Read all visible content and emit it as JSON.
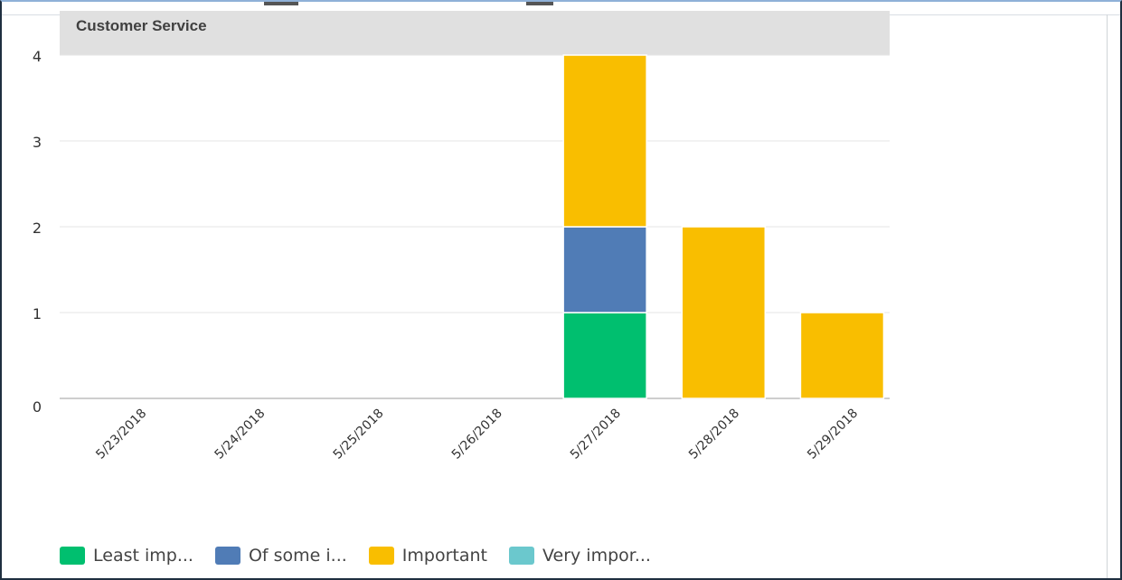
{
  "chart_data": {
    "type": "bar",
    "stacked": true,
    "title": "Customer Service",
    "categories": [
      "5/23/2018",
      "5/24/2018",
      "5/25/2018",
      "5/26/2018",
      "5/27/2018",
      "5/28/2018",
      "5/29/2018"
    ],
    "series": [
      {
        "name": "Least imp...",
        "color": "#00bf6f",
        "values": [
          0,
          0,
          0,
          0,
          1,
          0,
          0
        ]
      },
      {
        "name": "Of some i...",
        "color": "#507cb6",
        "values": [
          0,
          0,
          0,
          0,
          1,
          0,
          0
        ]
      },
      {
        "name": "Important",
        "color": "#f9be00",
        "values": [
          0,
          0,
          0,
          0,
          2,
          2,
          1
        ]
      },
      {
        "name": "Very impor...",
        "color": "#6bc8cd",
        "values": [
          0,
          0,
          0,
          0,
          0,
          0,
          0
        ]
      }
    ],
    "ylim": [
      0,
      4
    ],
    "yticks": [
      0,
      1,
      2,
      3,
      4
    ],
    "grid": true,
    "legend_position": "bottom-left",
    "xlabel": "",
    "ylabel": ""
  }
}
